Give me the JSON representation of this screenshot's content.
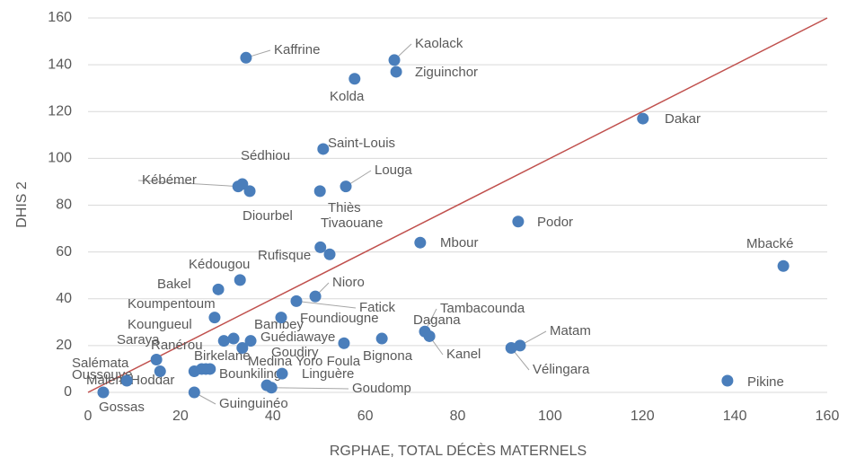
{
  "chart_data": {
    "type": "scatter",
    "xlabel": "RGPHAE, TOTAL DÉCÈS MATERNELS",
    "ylabel": "DHIS 2",
    "xlim": [
      0,
      160
    ],
    "xticks": [
      0,
      20,
      40,
      60,
      80,
      100,
      120,
      140,
      160
    ],
    "ylim": [
      0,
      160
    ],
    "yticks": [
      0,
      20,
      40,
      60,
      80,
      100,
      120,
      140,
      160
    ],
    "grid": true,
    "diagonal_color": "#c0504d",
    "series": [
      {
        "color": "#4a7ebb",
        "labels": [
          "Kaffrine",
          "Kaolack",
          "Ziguinchor",
          "Kolda",
          "Dakar",
          "Saint-Louis",
          "Kébémer",
          "Sédhiou",
          "Diourbel",
          "Louga",
          "Thiès",
          "Podor",
          "Mbour",
          "Tivaouane",
          "Rufisque",
          "Mbacké",
          "Kédougou",
          "Bakel",
          "Nioro",
          "Fatick",
          "Koumpentoum",
          "Foundiougne",
          "Tambacounda",
          "Kanel",
          "Dagana",
          "Bignona",
          "Matam",
          "Vélingara",
          "Koungueul",
          "Bambey",
          "Guédiawaye",
          "Goudiry",
          "Saraya",
          "Salémata",
          "Ranérou",
          "Bounkiling",
          "Malem Hoddar",
          "Birkelane",
          "Linguère",
          "Medina Yoro Foula",
          "Oussouye",
          "Pikine",
          "Gossas",
          "Guinguinéo",
          "Goudomp"
        ],
        "x": [
          34.2,
          66.3,
          66.7,
          57.7,
          120.1,
          50.9,
          32.5,
          33.4,
          35,
          55.8,
          50.2,
          93.1,
          71.9,
          50.3,
          52.3,
          150.5,
          32.9,
          28.2,
          49.2,
          45.1,
          27.4,
          41.8,
          72.9,
          73.9,
          63.6,
          55.4,
          93.5,
          91.6,
          29.4,
          31.5,
          35.2,
          33.4,
          14.8,
          15.6,
          25.5,
          26.4,
          23,
          24.6,
          42,
          38.7,
          8.4,
          138.4,
          3.3,
          23,
          39.7
        ],
        "values": [
          143,
          142,
          137,
          134,
          117,
          104,
          88,
          89,
          86,
          88,
          86,
          73,
          64,
          62,
          59,
          54,
          48,
          44,
          41,
          39,
          32,
          32,
          26,
          24,
          23,
          21,
          20,
          19,
          22,
          23,
          22,
          19,
          14,
          9,
          10,
          10,
          9,
          10,
          8,
          3,
          5,
          5,
          0,
          0,
          2
        ]
      }
    ]
  }
}
